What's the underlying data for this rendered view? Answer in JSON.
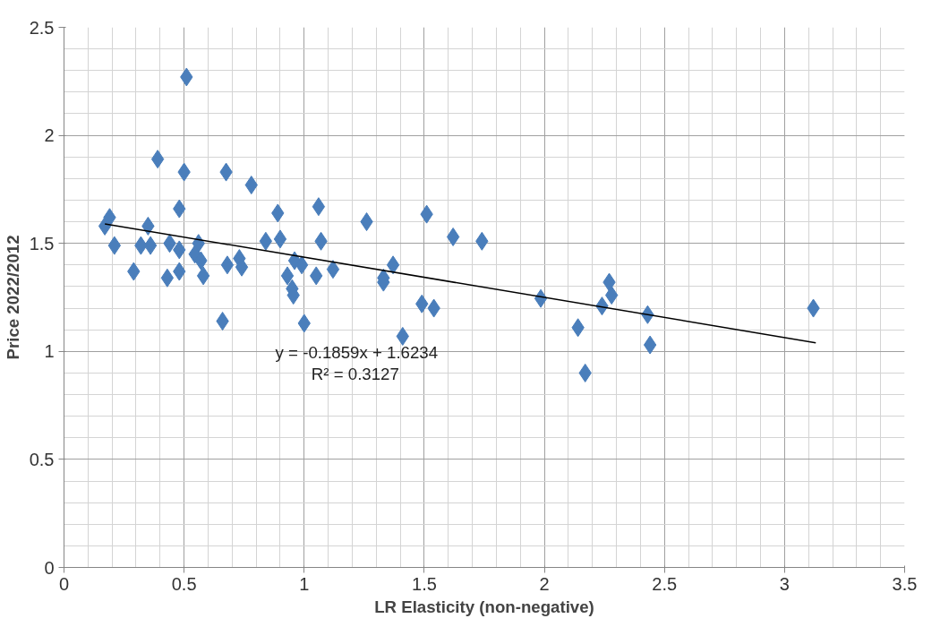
{
  "chart_data": {
    "type": "scatter",
    "xlabel": "LR Elasticity (non-negative)",
    "ylabel": "Price 2022/2012",
    "xlim": [
      0,
      3.5
    ],
    "xticks": [
      0,
      0.5,
      1,
      1.5,
      2,
      2.5,
      3,
      3.5
    ],
    "ylim": [
      0,
      2.5
    ],
    "yticks": [
      0,
      0.5,
      1,
      1.5,
      2,
      2.5
    ],
    "grid": true,
    "marker": "diamond",
    "series": [
      {
        "color": "#4a7ebb",
        "x": [
          0.17,
          0.19,
          0.21,
          0.29,
          0.35,
          0.32,
          0.36,
          0.39,
          0.43,
          0.48,
          0.48,
          0.5,
          0.51,
          0.44,
          0.48,
          0.56,
          0.545,
          0.57,
          0.58,
          0.66,
          0.675,
          0.68,
          0.73,
          0.74,
          0.78,
          0.84,
          0.89,
          0.9,
          0.96,
          0.93,
          0.95,
          0.955,
          0.99,
          1.0,
          1.05,
          1.06,
          1.07,
          1.12,
          1.26,
          1.37,
          1.33,
          1.33,
          1.41,
          1.51,
          1.49,
          1.54,
          1.62,
          1.74,
          1.985,
          2.14,
          2.17,
          2.24,
          2.27,
          2.28,
          2.43,
          2.44,
          3.12
        ],
        "values": [
          1.58,
          1.62,
          1.49,
          1.37,
          1.58,
          1.49,
          1.49,
          1.89,
          1.34,
          1.37,
          1.66,
          1.83,
          2.27,
          1.5,
          1.47,
          1.5,
          1.45,
          1.42,
          1.35,
          1.14,
          1.83,
          1.4,
          1.43,
          1.39,
          1.77,
          1.51,
          1.64,
          1.52,
          1.42,
          1.35,
          1.29,
          1.26,
          1.4,
          1.13,
          1.35,
          1.67,
          1.51,
          1.38,
          1.6,
          1.4,
          1.32,
          1.34,
          1.07,
          1.635,
          1.22,
          1.2,
          1.53,
          1.51,
          1.245,
          1.11,
          0.9,
          1.21,
          1.32,
          1.26,
          1.17,
          1.03,
          1.2
        ]
      },
      {
        "type": "line",
        "marker": "none",
        "color": "#000000",
        "x": [
          0.17,
          3.13
        ],
        "values": [
          1.59,
          1.04
        ]
      }
    ],
    "annotations": [
      "y = -0.1859x + 1.6234",
      "R² = 0.3127"
    ]
  }
}
